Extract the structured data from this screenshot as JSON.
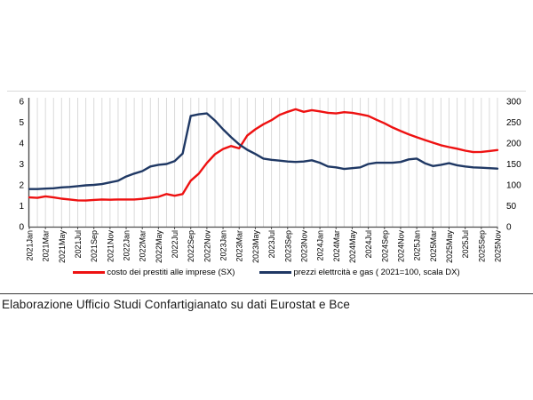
{
  "page": {
    "caption": "Elaborazione Ufficio Studi Confartigianato su dati Eurostat e Bce"
  },
  "colors": {
    "loans_line": "#ee1111",
    "energy_line": "#1f3864",
    "gridline": "#dadada",
    "axis": "#4d4d4d",
    "tick_text": "#000000",
    "chart_top_border": "#d9d9d9",
    "caption_rule": "#3a3a3a"
  },
  "chart_data": {
    "type": "line",
    "grid": "vertical-monthly",
    "legend_position": "bottom",
    "x": [
      "2021Jan",
      "2021Feb",
      "2021Mar",
      "2021Apr",
      "2021May",
      "2021Jun",
      "2021Jul",
      "2021Aug",
      "2021Sep",
      "2021Oct",
      "2021Nov",
      "2021Dec",
      "2022Jan",
      "2022Feb",
      "2022Mar",
      "2022Apr",
      "2022May",
      "2022Jun",
      "2022Jul",
      "2022Aug",
      "2022Sep",
      "2022Oct",
      "2022Nov",
      "2022Dec",
      "2023Jan",
      "2023Feb",
      "2023Mar",
      "2023Apr",
      "2023May",
      "2023Jun",
      "2023Jul",
      "2023Aug",
      "2023Sep",
      "2023Oct",
      "2023Nov",
      "2023Dec",
      "2024Jan",
      "2024Feb",
      "2024Mar",
      "2024Apr",
      "2024May",
      "2024Jun",
      "2024Jul",
      "2024Aug",
      "2024Sep",
      "2024Oct",
      "2024Nov",
      "2024Dec",
      "2025Jan",
      "2025Feb",
      "2025Mar",
      "2025Apr",
      "2025May",
      "2025Jun",
      "2025Jul",
      "2025Aug",
      "2025Sep",
      "2025Oct",
      "2025Nov"
    ],
    "x_tick_labels": [
      "2021Jan",
      "2021Mar",
      "2021May",
      "2021Jul",
      "2021Sep",
      "2021Nov",
      "2022Jan",
      "2022Mar",
      "2022May",
      "2022Jul",
      "2022Sep",
      "2022Nov",
      "2023Jan",
      "2023Mar",
      "2023May",
      "2023Jul",
      "2023Sep",
      "2023Nov",
      "2024Jan",
      "2024Mar",
      "2024May",
      "2024Jul",
      "2024Sep",
      "2024Nov",
      "2025Jan",
      "2025Mar",
      "2025May",
      "2025Jul",
      "2025Sep",
      "2025Nov"
    ],
    "left_axis": {
      "min": 0,
      "max": 6,
      "ticks": [
        0,
        1,
        2,
        3,
        4,
        5,
        6
      ]
    },
    "right_axis": {
      "min": 0,
      "max": 300,
      "ticks": [
        0,
        50,
        100,
        150,
        200,
        250,
        300
      ]
    },
    "series": [
      {
        "name": "costo dei prestiti alle imprese (SX)",
        "axis": "left",
        "color": "#ee1111",
        "values": [
          1.4,
          1.38,
          1.45,
          1.4,
          1.34,
          1.3,
          1.26,
          1.25,
          1.28,
          1.3,
          1.29,
          1.3,
          1.3,
          1.3,
          1.33,
          1.38,
          1.43,
          1.56,
          1.48,
          1.56,
          2.2,
          2.54,
          3.05,
          3.47,
          3.72,
          3.86,
          3.75,
          4.36,
          4.66,
          4.9,
          5.1,
          5.35,
          5.5,
          5.62,
          5.5,
          5.58,
          5.52,
          5.45,
          5.42,
          5.48,
          5.45,
          5.38,
          5.3,
          5.12,
          4.95,
          4.75,
          4.58,
          4.42,
          4.28,
          4.15,
          4.02,
          3.9,
          3.81,
          3.73,
          3.64,
          3.57,
          3.58,
          3.62,
          3.67
        ]
      },
      {
        "name": "prezzi elettrcità e gas ( 2021=100, scala DX)",
        "axis": "right",
        "color": "#1f3864",
        "values": [
          90,
          90,
          91,
          92,
          94,
          95,
          97,
          99,
          100,
          102,
          106,
          110,
          120,
          127,
          133,
          144,
          148,
          150,
          157,
          175,
          265,
          269,
          271,
          254,
          233,
          214,
          197,
          184,
          174,
          163,
          160,
          158,
          156,
          155,
          156,
          159,
          153,
          144,
          142,
          138,
          140,
          142,
          150,
          153,
          153,
          153,
          155,
          161,
          163,
          152,
          145,
          148,
          152,
          147,
          144,
          142,
          141,
          140,
          139
        ]
      }
    ]
  }
}
